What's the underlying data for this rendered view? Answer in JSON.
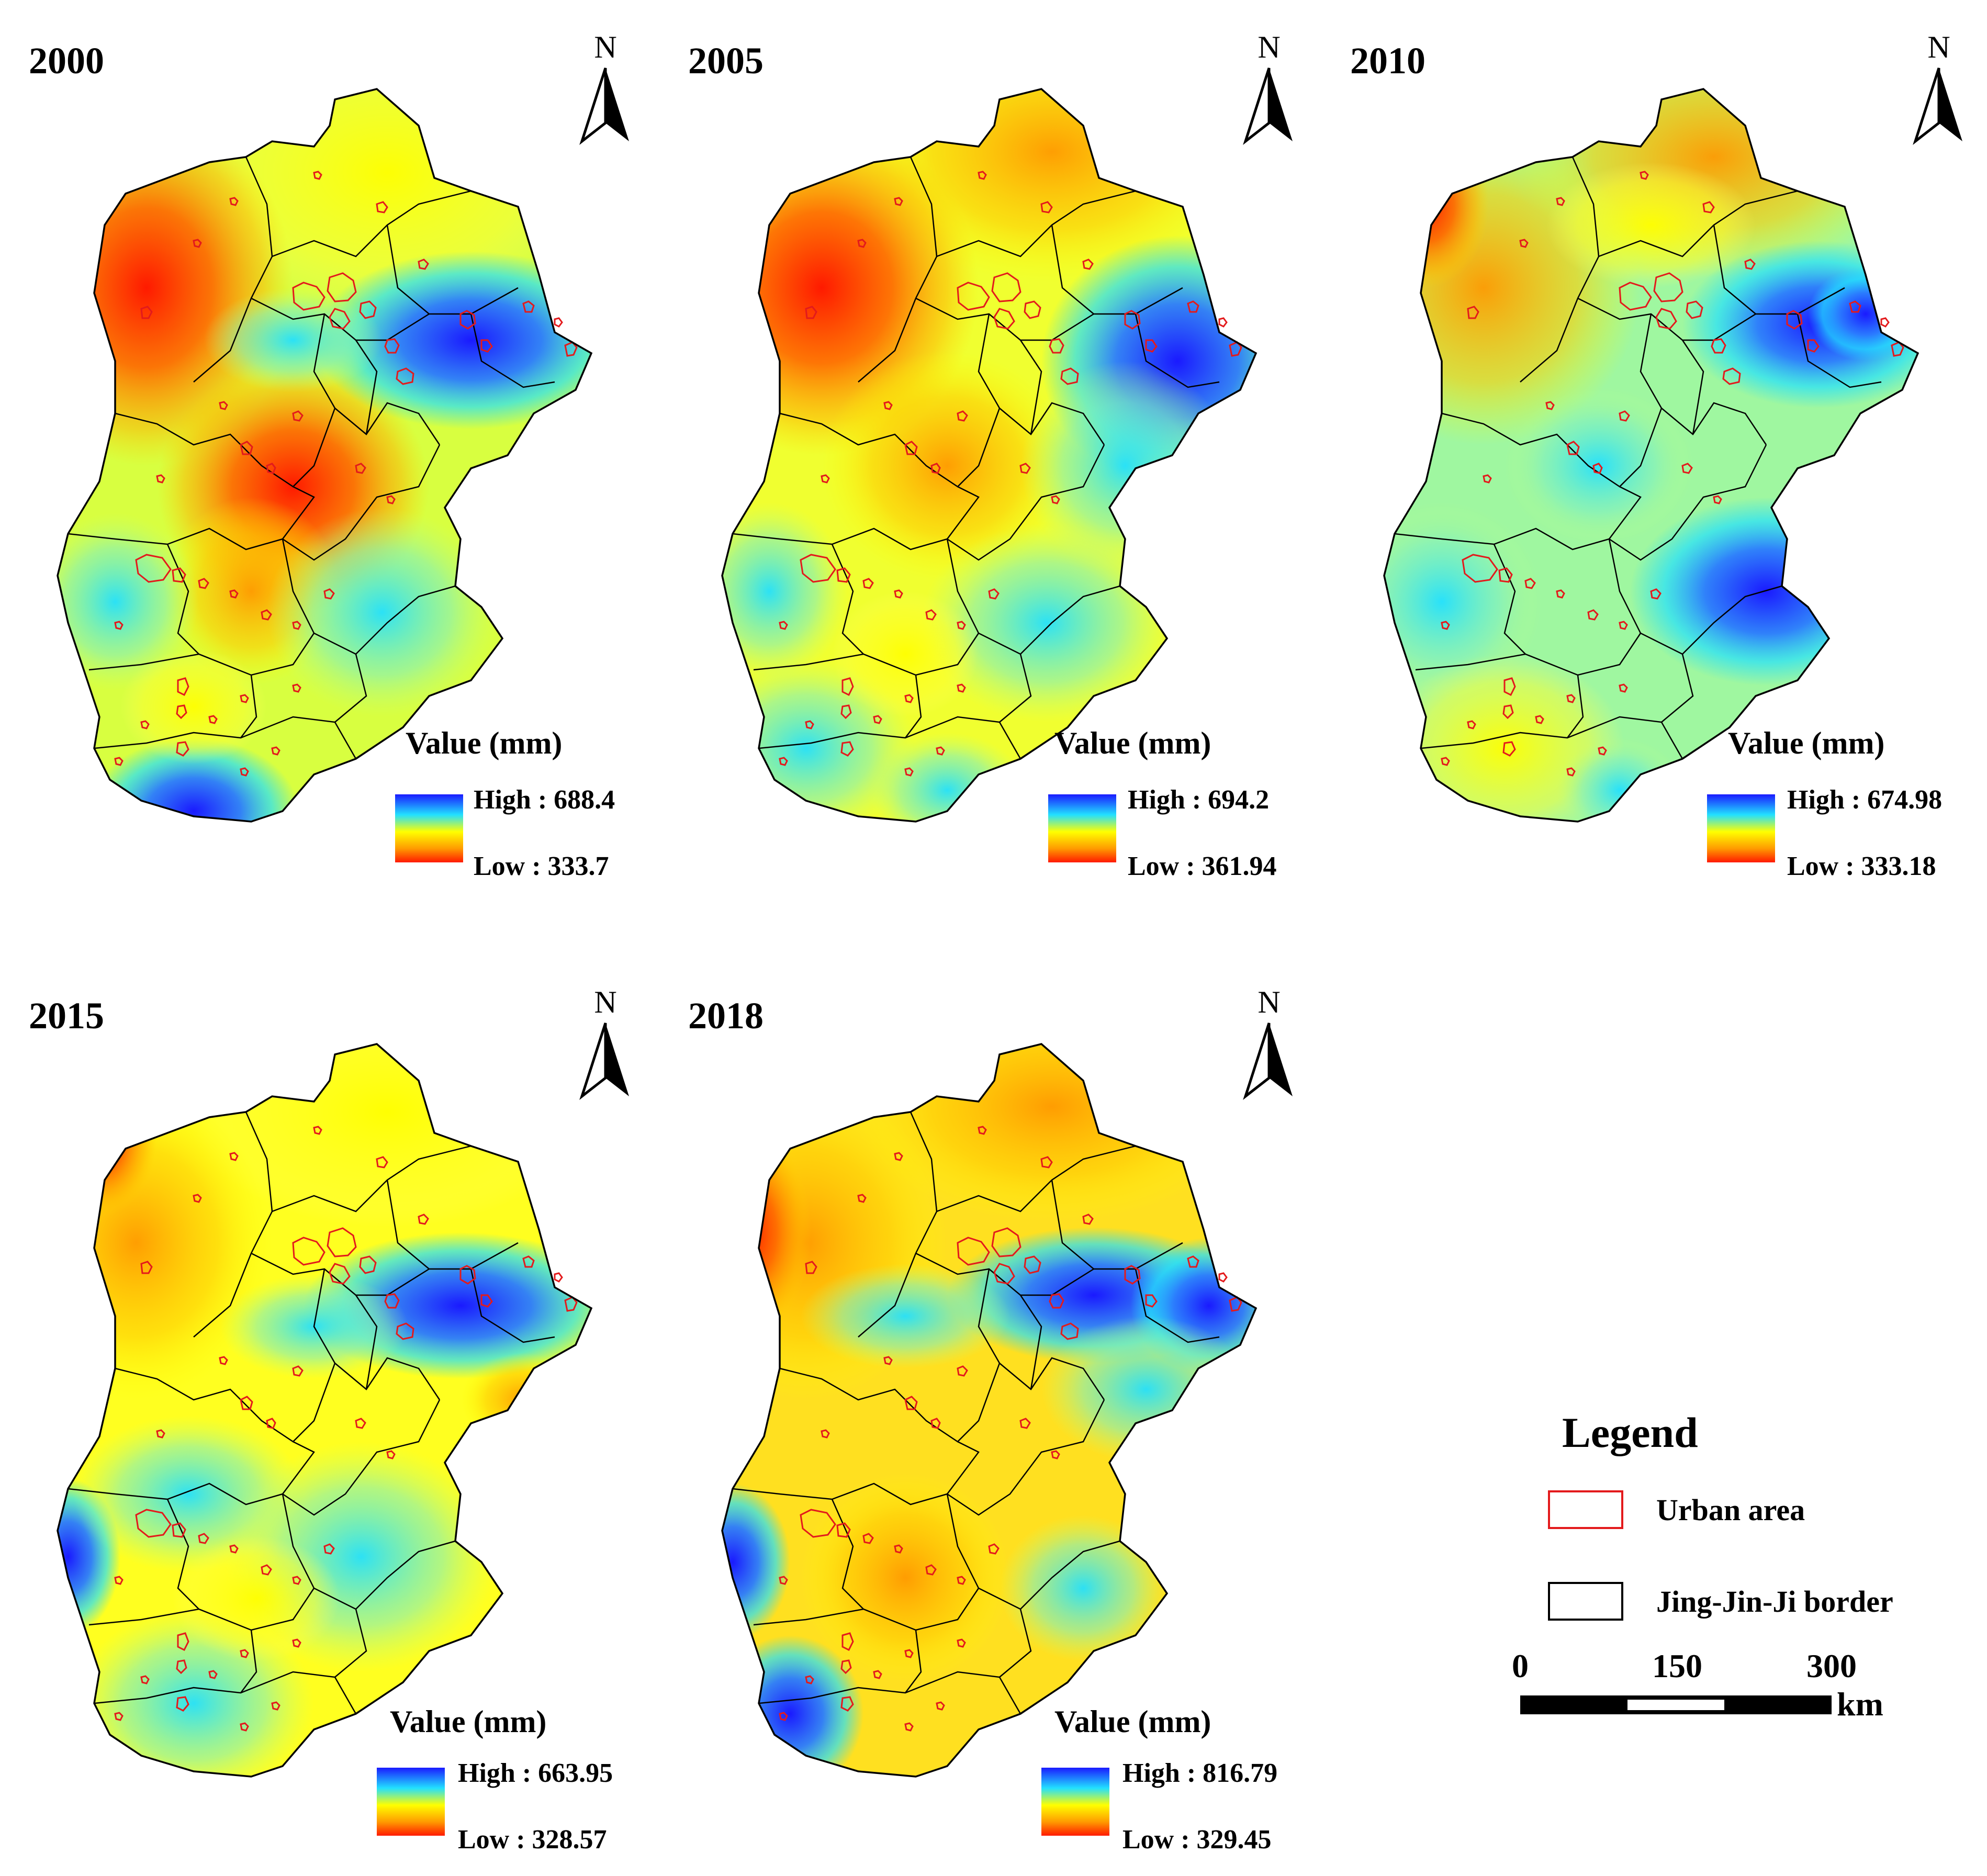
{
  "colors": {
    "high": "#1a1aff",
    "mid_cyan": "#22e0ff",
    "mid_yellow": "#ffff00",
    "orange": "#ff9900",
    "low": "#ff1a00",
    "urban_outline": "#e31a1c",
    "border": "#000000"
  },
  "north_label": "N",
  "panels": [
    {
      "year": "2000",
      "legend_title": "Value (mm)",
      "high_label": "High : 688.4",
      "low_label": "Low : 333.7",
      "high_value": 688.4,
      "low_value": 333.7
    },
    {
      "year": "2005",
      "legend_title": "Value (mm)",
      "high_label": "High : 694.2",
      "low_label": "Low : 361.94",
      "high_value": 694.2,
      "low_value": 361.94
    },
    {
      "year": "2010",
      "legend_title": "Value (mm)",
      "high_label": "High : 674.98",
      "low_label": "Low : 333.18",
      "high_value": 674.98,
      "low_value": 333.18
    },
    {
      "year": "2015",
      "legend_title": "Value (mm)",
      "high_label": "High : 663.95",
      "low_label": "Low : 328.57",
      "high_value": 663.95,
      "low_value": 328.57
    },
    {
      "year": "2018",
      "legend_title": "Value (mm)",
      "high_label": "High : 816.79",
      "low_label": "Low : 329.45",
      "high_value": 816.79,
      "low_value": 329.45
    }
  ],
  "legend": {
    "title": "Legend",
    "urban_label": "Urban area",
    "border_label": "Jing-Jin-Ji border"
  },
  "scale_bar": {
    "ticks": [
      "0",
      "150",
      "300"
    ],
    "unit": "km"
  }
}
